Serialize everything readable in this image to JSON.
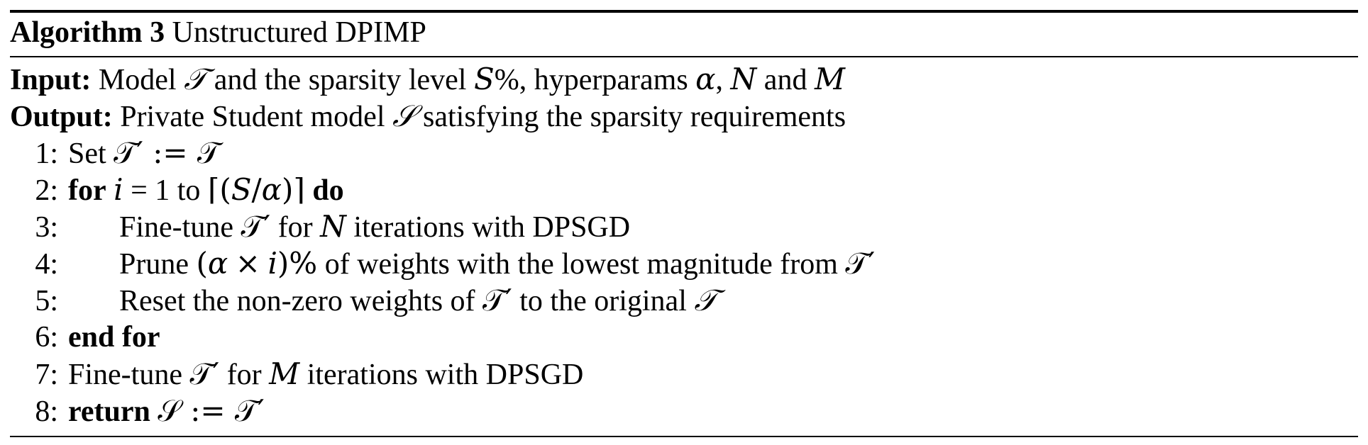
{
  "algorithm": {
    "label": "Algorithm 3",
    "title": "Unstructured DPIMP",
    "input": {
      "label": "Input:",
      "parts": [
        "Model",
        "𝒯",
        "and the sparsity level",
        "S",
        "%, hyperparams",
        "α",
        ",",
        "N",
        "and",
        "M"
      ]
    },
    "output": {
      "label": "Output:",
      "parts": [
        "Private Student model",
        "𝒮",
        "satisfying the sparsity requirements"
      ]
    },
    "lines": [
      {
        "num": "1:",
        "parts": [
          "Set",
          "𝒯′ := 𝒯"
        ]
      },
      {
        "num": "2:",
        "parts": [
          "for",
          "i",
          "= 1 to",
          "⌈(",
          "S",
          "/",
          "α",
          ")⌉",
          "do"
        ]
      },
      {
        "num": "3:",
        "parts": [
          "Fine-tune",
          "𝒯′",
          "for",
          "N",
          "iterations with DPSGD"
        ]
      },
      {
        "num": "4:",
        "parts": [
          "Prune",
          "(",
          "α",
          "×",
          "i",
          ")%",
          "of weights with the lowest magnitude from",
          "𝒯′"
        ]
      },
      {
        "num": "5:",
        "parts": [
          "Reset the non-zero weights of",
          "𝒯′",
          "to the original",
          "𝒯"
        ]
      },
      {
        "num": "6:",
        "parts": [
          "end for"
        ]
      },
      {
        "num": "7:",
        "parts": [
          "Fine-tune",
          "𝒯′",
          "for",
          "M",
          "iterations with DPSGD"
        ]
      },
      {
        "num": "8:",
        "parts": [
          "return",
          "𝒮 := 𝒯′"
        ]
      }
    ]
  }
}
